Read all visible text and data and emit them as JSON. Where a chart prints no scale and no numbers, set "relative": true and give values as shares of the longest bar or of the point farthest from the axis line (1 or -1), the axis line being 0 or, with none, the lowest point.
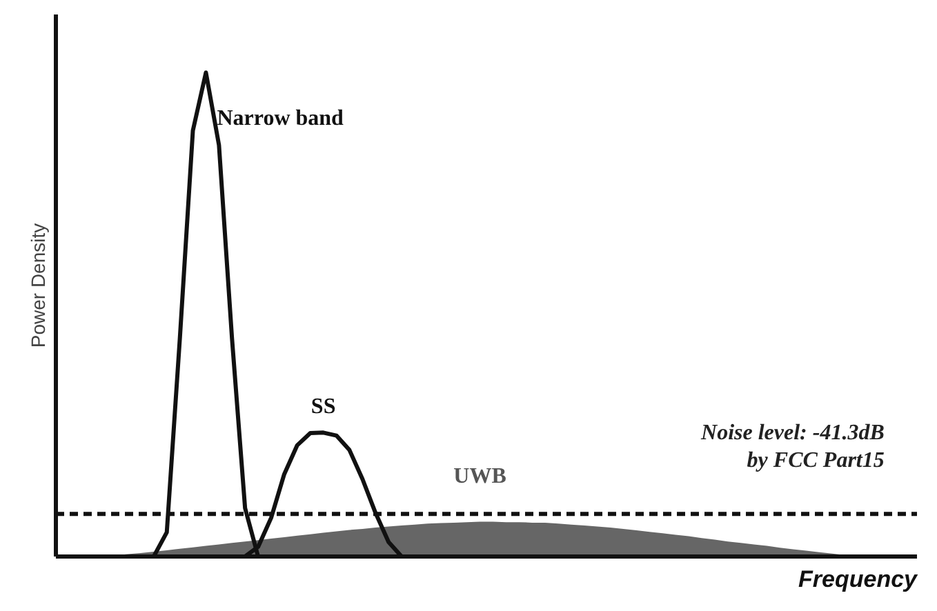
{
  "chart_data": {
    "type": "line",
    "relative": true,
    "xlabel": "Frequency",
    "ylabel": "Power Density",
    "grid": false,
    "legend": false,
    "marker": "none",
    "categories": [
      null,
      null,
      null,
      null,
      null,
      null,
      null,
      null,
      null,
      null,
      null,
      null,
      null,
      null,
      null,
      null,
      null,
      null,
      null,
      null,
      null,
      null,
      null,
      null,
      null,
      null,
      null,
      null,
      null,
      null,
      null,
      null,
      null,
      null,
      null,
      null,
      null,
      null,
      null,
      null,
      null,
      null,
      null,
      null,
      null,
      null,
      null,
      null,
      null,
      null,
      null,
      null,
      null,
      null,
      null,
      null,
      null,
      null,
      null,
      null,
      null,
      null,
      null
    ],
    "series": [
      {
        "name": "UWB",
        "type": "area",
        "color": "#555555",
        "values": [
          null,
          null,
          0,
          0.002,
          0.005,
          0.007,
          0.01,
          0.013,
          0.016,
          0.019,
          0.022,
          0.025,
          0.028,
          0.031,
          0.034,
          0.037,
          0.04,
          0.043,
          0.046,
          0.049,
          0.052,
          0.055,
          0.057,
          0.06,
          0.062,
          0.064,
          0.066,
          0.068,
          0.069,
          0.07,
          0.071,
          0.072,
          0.072,
          0.071,
          0.071,
          0.07,
          0.07,
          0.068,
          0.066,
          0.064,
          0.062,
          0.06,
          0.057,
          0.054,
          0.051,
          0.048,
          0.045,
          0.042,
          0.038,
          0.035,
          0.031,
          0.028,
          0.025,
          0.022,
          0.018,
          0.015,
          0.012,
          0.009,
          0.006,
          0.003,
          0,
          null,
          null
        ]
      },
      {
        "name": "Narrow band",
        "color": "#111111",
        "line_style": "solid",
        "values": [
          null,
          null,
          null,
          null,
          null,
          null,
          0,
          0.05,
          0.45,
          0.88,
          1,
          0.85,
          0.45,
          0.1,
          0,
          null,
          null,
          null,
          null,
          null,
          null,
          null,
          null,
          null,
          null,
          null,
          null,
          null,
          null,
          null,
          null,
          null,
          null,
          null,
          null,
          null,
          null,
          null,
          null,
          null,
          null,
          null,
          null,
          null,
          null,
          null,
          null,
          null,
          null,
          null,
          null,
          null,
          null,
          null,
          null,
          null,
          null,
          null,
          null,
          null,
          null,
          null,
          null
        ]
      },
      {
        "name": "SS",
        "color": "#111111",
        "line_style": "solid",
        "values": [
          null,
          null,
          null,
          null,
          null,
          null,
          null,
          null,
          null,
          null,
          null,
          null,
          null,
          0,
          0.02,
          0.08,
          0.17,
          0.23,
          0.255,
          0.256,
          0.25,
          0.22,
          0.16,
          0.09,
          0.03,
          0,
          null,
          null,
          null,
          null,
          null,
          null,
          null,
          null,
          null,
          null,
          null,
          null,
          null,
          null,
          null,
          null,
          null,
          null,
          null,
          null,
          null,
          null,
          null,
          null,
          null,
          null,
          null,
          null,
          null,
          null,
          null,
          null,
          null,
          null,
          null,
          null,
          null
        ]
      }
    ],
    "ref_lines": [
      {
        "axis": "y",
        "value": 0.088,
        "color": "#111111",
        "line_style": "dashed"
      }
    ],
    "annotations": [
      "Noise level: -41.3dB\nby FCC Part15"
    ]
  }
}
